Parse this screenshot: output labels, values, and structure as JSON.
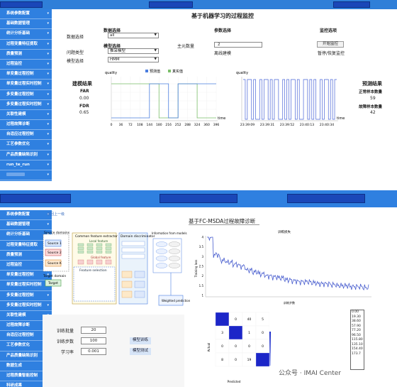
{
  "sidebar_top": [
    {
      "label": "系统参数配置"
    },
    {
      "label": "基础数据管理"
    },
    {
      "label": "统计分析基础"
    },
    {
      "label": "过程变量特征提取"
    },
    {
      "label": "质量预测"
    },
    {
      "label": "过程监控"
    },
    {
      "label": "单变量过程控制"
    },
    {
      "label": "单变量过程实时控制"
    },
    {
      "label": "多变量过程控制"
    },
    {
      "label": "多变量过程实时控制"
    },
    {
      "label": "关联性建模"
    },
    {
      "label": "过程故障诊断"
    },
    {
      "label": "自适应过程控制"
    },
    {
      "label": "工艺参数优化"
    },
    {
      "label": "产品质量缺陷识别"
    },
    {
      "label": "run_te_run"
    },
    {
      "label": ""
    },
    {
      "label": ""
    }
  ],
  "sidebar_bottom": [
    {
      "label": "系统参数配置"
    },
    {
      "label": "基础数据管理"
    },
    {
      "label": "统计分析基础"
    },
    {
      "label": "过程变量特征提取"
    },
    {
      "label": "质量预测"
    },
    {
      "label": "过程监控"
    },
    {
      "label": "单变量过程控制"
    },
    {
      "label": "单变量过程实时控制"
    },
    {
      "label": "多变量过程控制"
    },
    {
      "label": "多变量过程实时控制"
    },
    {
      "label": "关联性建模"
    },
    {
      "label": "过程故障诊断"
    },
    {
      "label": "自适应过程控制"
    },
    {
      "label": "工艺参数优化"
    },
    {
      "label": "产品质量缺陷识别"
    },
    {
      "label": "数据生成"
    },
    {
      "label": "过程质量智能控制"
    },
    {
      "label": "科研成果"
    }
  ],
  "top": {
    "title": "基于机器学习的过程监控",
    "data_select": {
      "group": "数据选择",
      "label": "数据选择",
      "value": "all"
    },
    "model_select": {
      "group": "模型选择",
      "type_label": "问题类型",
      "type_value": "推采模型",
      "model_label": "模型选择",
      "model_value": "HMM"
    },
    "pca": {
      "label": "主元数量",
      "group": "参数选择",
      "value": "2",
      "offline_label": "离线建模"
    },
    "monitor": {
      "group": "监控选项",
      "start": "开始监控",
      "pause": "暂停/恢复监控"
    },
    "results": {
      "title": "建模结果",
      "far_label": "FAR",
      "far_value": "0.00",
      "fdr_label": "FDR",
      "fdr_value": "0.65"
    },
    "chart1": {
      "ylabel": "quality",
      "xlabel": "time",
      "legend_pred": "预测值",
      "legend_real": "真实值",
      "ticks": [
        "0",
        "36",
        "72",
        "108",
        "144",
        "180",
        "216",
        "252",
        "288",
        "324",
        "360",
        "396"
      ]
    },
    "chart2": {
      "ylabel": "quality",
      "xlabel": "time",
      "ticks": [
        "23:39:09",
        "23:39:31",
        "23:39:52",
        "23:40:13",
        "23:40:34"
      ]
    },
    "pred": {
      "title": "预测结果",
      "normal_label": "正常样本数量",
      "normal_value": "59",
      "fault_label": "故障样本数量",
      "fault_value": "42"
    }
  },
  "bottom": {
    "breadcrumb": "返回上一级",
    "title": "基于FC-MSDA过程故障诊断",
    "diagram": {
      "source_domains": "Source domains",
      "s1": "Source 1",
      "s2": "Source 2",
      "sk": "Source K",
      "target_domain": "Target domain",
      "target": "Target",
      "cfe": "Common feature extractor",
      "local": "Local feature",
      "global": "Global feature",
      "fs": "Feature selection",
      "dd": "Domain discriminator",
      "info": "Information from models",
      "wp": "Weighted prediction"
    },
    "train": {
      "batch_label": "训练批量",
      "batch_value": "20",
      "epochs_label": "训练步数",
      "epochs_value": "100",
      "lr_label": "学习率",
      "lr_value": "0.001",
      "train_btn": "模型训练",
      "test_btn": "模型测试"
    },
    "loss_chart": {
      "title": "训练损失",
      "ylabel": "Training loss",
      "xlabel": "训练步数",
      "yticks": [
        "4",
        "3.5",
        "3",
        "2.5",
        "2",
        "1.5",
        "1"
      ]
    },
    "confusion": {
      "ylabel": "Actual",
      "xlabel": "Predicted",
      "cells": [
        [
          "",
          "0",
          "40",
          "5"
        ],
        [
          "3",
          "",
          "1",
          "0"
        ],
        [
          "0",
          "0",
          "0",
          "0"
        ],
        [
          "8",
          "0",
          "19",
          ""
        ]
      ]
    },
    "list": [
      "0.00",
      "19.30",
      "38.60",
      "57.90",
      "77.20",
      "96.50",
      "115.80",
      "135.10",
      "154.40",
      "173.7"
    ],
    "watermark": "公众号 · IMAI Center"
  },
  "chart_data": [
    {
      "type": "line",
      "title": "",
      "ylabel": "quality",
      "xlabel": "time",
      "x": [
        0,
        36,
        72,
        108,
        144,
        180,
        216,
        252,
        288,
        324,
        360,
        396
      ],
      "series": [
        {
          "name": "预测值",
          "values": [
            0,
            0,
            0,
            0,
            1,
            1,
            0,
            1,
            1,
            1,
            1,
            1
          ]
        },
        {
          "name": "真实值",
          "values": [
            1,
            1,
            1,
            1,
            1,
            0,
            0,
            1,
            1,
            0,
            0,
            0
          ]
        }
      ]
    },
    {
      "type": "line",
      "title": "训练损失",
      "ylabel": "Training loss",
      "xlabel": "训练步数",
      "ylim": [
        1,
        4
      ],
      "series": [
        {
          "name": "",
          "values": [
            4.0,
            3.1,
            2.8,
            2.7,
            2.6,
            2.5,
            2.3,
            2.2,
            2.1,
            2.0,
            1.95,
            1.9,
            1.8,
            1.75,
            1.7,
            1.7,
            1.65,
            1.6,
            1.6,
            1.55,
            1.5,
            1.5,
            1.45,
            1.45,
            1.4,
            1.4
          ]
        }
      ]
    }
  ]
}
